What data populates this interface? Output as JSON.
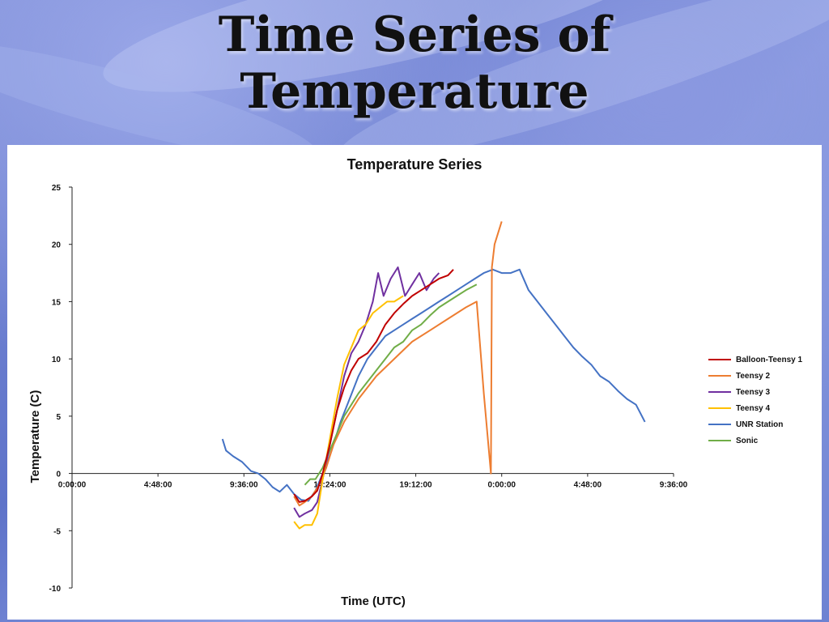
{
  "slide": {
    "title_line1": "Time Series of",
    "title_line2": "Temperature"
  },
  "chart_data": {
    "type": "line",
    "title": "Temperature Series",
    "xlabel": "Time (UTC)",
    "ylabel": "Temperature (C)",
    "ylim": [
      -10,
      25
    ],
    "yticks": [
      25,
      20,
      15,
      10,
      5,
      0,
      -5,
      -10
    ],
    "xlim_hours": [
      0,
      33.6
    ],
    "xticks": [
      "0:00:00",
      "4:48:00",
      "9:36:00",
      "14:24:00",
      "19:12:00",
      "0:00:00",
      "4:48:00",
      "9:36:00"
    ],
    "grid": false,
    "legend_position": "right",
    "series": [
      {
        "name": "Balloon-Teensy 1",
        "color": "#C00000",
        "x_hours": [
          12.4,
          12.7,
          13.0,
          13.4,
          13.7,
          14.0,
          14.4,
          14.8,
          15.2,
          15.6,
          16.0,
          16.5,
          17.0,
          17.5,
          18.0,
          18.5,
          19.0,
          19.5,
          20.0,
          20.5,
          21.0,
          21.3
        ],
        "values": [
          -1.8,
          -2.5,
          -2.4,
          -2.0,
          -1.5,
          0.0,
          2.5,
          5.5,
          7.5,
          9.0,
          10.0,
          10.5,
          11.5,
          13.0,
          14.0,
          14.8,
          15.5,
          16.0,
          16.5,
          17.0,
          17.3,
          17.8
        ]
      },
      {
        "name": "Teensy 2",
        "color": "#ED7D31",
        "x_hours": [
          12.4,
          12.7,
          13.0,
          13.4,
          13.8,
          14.2,
          14.6,
          15.2,
          16.0,
          17.0,
          18.0,
          19.0,
          20.0,
          21.0,
          22.0,
          22.6,
          23.0,
          23.4,
          23.45,
          23.6,
          23.8,
          24.0
        ],
        "values": [
          -2.0,
          -2.8,
          -2.5,
          -2.0,
          -1.0,
          0.5,
          2.5,
          4.5,
          6.5,
          8.5,
          10.0,
          11.5,
          12.5,
          13.5,
          14.5,
          15.0,
          7.0,
          0.0,
          18.0,
          20.0,
          21.0,
          22.0
        ]
      },
      {
        "name": "Teensy 3",
        "color": "#7030A0",
        "x_hours": [
          12.4,
          12.7,
          13.0,
          13.4,
          13.7,
          14.0,
          14.4,
          14.8,
          15.2,
          15.6,
          16.0,
          16.4,
          16.8,
          17.1,
          17.4,
          17.8,
          18.2,
          18.6,
          19.0,
          19.4,
          19.8,
          20.2,
          20.5
        ],
        "values": [
          -3.0,
          -3.8,
          -3.5,
          -3.2,
          -2.5,
          -0.5,
          2.5,
          5.5,
          8.5,
          10.5,
          11.5,
          13.0,
          15.0,
          17.5,
          15.5,
          17.0,
          18.0,
          15.5,
          16.5,
          17.5,
          16.0,
          17.0,
          17.5
        ]
      },
      {
        "name": "Teensy 4",
        "color": "#FFC000",
        "x_hours": [
          12.4,
          12.7,
          13.0,
          13.4,
          13.7,
          14.0,
          14.4,
          14.8,
          15.2,
          15.6,
          16.0,
          16.4,
          16.8,
          17.2,
          17.6,
          18.0,
          18.5
        ],
        "values": [
          -4.2,
          -4.8,
          -4.5,
          -4.5,
          -3.5,
          -0.5,
          3.0,
          6.5,
          9.5,
          11.0,
          12.5,
          13.0,
          14.0,
          14.5,
          15.0,
          15.0,
          15.5
        ]
      },
      {
        "name": "UNR Station",
        "color": "#4472C4",
        "x_hours": [
          8.4,
          8.6,
          9.0,
          9.5,
          10.0,
          10.4,
          10.8,
          11.2,
          11.6,
          12.0,
          12.4,
          12.8,
          13.2,
          13.6,
          14.0,
          14.5,
          15.0,
          15.5,
          16.0,
          16.5,
          17.0,
          17.5,
          18.0,
          18.5,
          19.0,
          19.5,
          20.0,
          20.5,
          21.0,
          21.5,
          22.0,
          22.5,
          23.0,
          23.5,
          24.0,
          24.5,
          25.0,
          25.5,
          26.0,
          26.5,
          27.0,
          27.5,
          28.0,
          28.5,
          29.0,
          29.5,
          30.0,
          30.5,
          31.0,
          31.5,
          32.0
        ],
        "values": [
          3.0,
          2.0,
          1.5,
          1.0,
          0.2,
          0.0,
          -0.5,
          -1.2,
          -1.6,
          -1.0,
          -1.8,
          -2.3,
          -2.4,
          -1.5,
          0.0,
          2.0,
          4.5,
          6.5,
          8.5,
          10.0,
          11.0,
          12.0,
          12.5,
          13.0,
          13.5,
          14.0,
          14.5,
          15.0,
          15.5,
          16.0,
          16.5,
          17.0,
          17.5,
          17.8,
          17.5,
          17.5,
          17.8,
          16.0,
          15.0,
          14.0,
          13.0,
          12.0,
          11.0,
          10.2,
          9.5,
          8.5,
          8.0,
          7.2,
          6.5,
          6.0,
          4.5
        ]
      },
      {
        "name": "Sonic",
        "color": "#70AD47",
        "x_hours": [
          13.0,
          13.3,
          13.6,
          14.0,
          14.4,
          14.8,
          15.2,
          15.6,
          16.0,
          16.5,
          17.0,
          17.5,
          18.0,
          18.5,
          19.0,
          19.5,
          20.0,
          20.5,
          21.0,
          21.5,
          22.0,
          22.6
        ],
        "values": [
          -1.0,
          -0.5,
          -0.5,
          0.5,
          2.0,
          3.5,
          5.0,
          6.0,
          7.0,
          8.0,
          9.0,
          10.0,
          11.0,
          11.5,
          12.5,
          13.0,
          13.8,
          14.5,
          15.0,
          15.5,
          16.0,
          16.5
        ]
      }
    ]
  }
}
